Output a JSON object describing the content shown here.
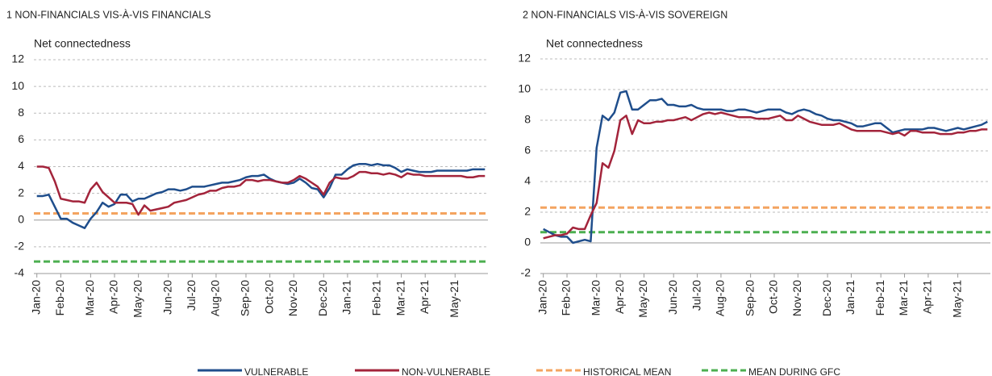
{
  "chart_data": [
    {
      "type": "line",
      "title": "1 NON-FINANCIALS VIS-À-VIS FINANCIALS",
      "ylabel": "Net connectedness",
      "categories": [
        "Jan-20",
        null,
        null,
        null,
        "Feb-20",
        null,
        null,
        null,
        null,
        "Mar-20",
        null,
        null,
        null,
        "Apr-20",
        null,
        null,
        null,
        "May-20",
        null,
        null,
        null,
        null,
        "Jun-20",
        null,
        null,
        null,
        "Jul-20",
        null,
        null,
        null,
        "Aug-20",
        null,
        null,
        null,
        null,
        "Sep-20",
        null,
        null,
        null,
        "Oct-20",
        null,
        null,
        null,
        "Nov-20",
        null,
        null,
        null,
        null,
        "Dec-20",
        null,
        null,
        null,
        "Jan-21",
        null,
        null,
        null,
        null,
        "Feb-21",
        null,
        null,
        null,
        "Mar-21",
        null,
        null,
        null,
        "Apr-21",
        null,
        null,
        null,
        null,
        "May-21",
        null,
        null,
        null,
        null,
        null
      ],
      "series": [
        {
          "color": "#1f4e8c",
          "values": [
            1.8,
            1.8,
            1.9,
            1.0,
            0.1,
            0.1,
            -0.2,
            -0.4,
            -0.6,
            0.1,
            0.6,
            1.3,
            1.0,
            1.2,
            1.9,
            1.9,
            1.4,
            1.6,
            1.6,
            1.8,
            2.0,
            2.1,
            2.3,
            2.3,
            2.2,
            2.3,
            2.5,
            2.5,
            2.5,
            2.6,
            2.7,
            2.8,
            2.8,
            2.9,
            3.0,
            3.2,
            3.3,
            3.3,
            3.4,
            3.1,
            2.9,
            2.8,
            2.7,
            2.8,
            3.1,
            2.8,
            2.4,
            2.3,
            1.7,
            2.4,
            3.4,
            3.4,
            3.8,
            4.1,
            4.2,
            4.2,
            4.1,
            4.2,
            4.1,
            4.1,
            3.9,
            3.6,
            3.8,
            3.7,
            3.6,
            3.6,
            3.6,
            3.7,
            3.7,
            3.7,
            3.7,
            3.7,
            3.7,
            3.8,
            3.8,
            3.8
          ]
        },
        {
          "color": "#a3243b",
          "values": [
            4.0,
            4.0,
            3.9,
            2.9,
            1.6,
            1.5,
            1.4,
            1.4,
            1.3,
            2.3,
            2.8,
            2.1,
            1.7,
            1.3,
            1.3,
            1.3,
            1.2,
            0.4,
            1.1,
            0.7,
            0.8,
            0.9,
            1.0,
            1.3,
            1.4,
            1.5,
            1.7,
            1.9,
            2.0,
            2.2,
            2.2,
            2.4,
            2.5,
            2.5,
            2.6,
            3.0,
            3.0,
            2.9,
            3.0,
            3.0,
            2.9,
            2.8,
            2.8,
            3.0,
            3.3,
            3.1,
            2.8,
            2.5,
            1.9,
            2.8,
            3.2,
            3.1,
            3.1,
            3.3,
            3.6,
            3.6,
            3.5,
            3.5,
            3.4,
            3.5,
            3.4,
            3.2,
            3.5,
            3.4,
            3.4,
            3.3,
            3.3,
            3.3,
            3.3,
            3.3,
            3.3,
            3.3,
            3.2,
            3.2,
            3.3,
            3.3
          ]
        }
      ],
      "reference_lines": [
        {
          "color": "#f4a460",
          "value": 0.5
        },
        {
          "color": "#4caf50",
          "value": -3.1
        }
      ],
      "ylim": [
        -4,
        12
      ],
      "yticks": [
        -4,
        -2,
        0,
        2,
        4,
        6,
        8,
        10,
        12
      ],
      "grid": true
    },
    {
      "type": "line",
      "title": "2 NON-FINANCIALS VIS-À-VIS SOVEREIGN",
      "ylabel": "Net connectedness",
      "categories": [
        "Jan-20",
        null,
        null,
        null,
        "Feb-20",
        null,
        null,
        null,
        null,
        "Mar-20",
        null,
        null,
        null,
        "Apr-20",
        null,
        null,
        null,
        "May-20",
        null,
        null,
        null,
        null,
        "Jun-20",
        null,
        null,
        null,
        "Jul-20",
        null,
        null,
        null,
        "Aug-20",
        null,
        null,
        null,
        null,
        "Sep-20",
        null,
        null,
        null,
        "Oct-20",
        null,
        null,
        null,
        "Nov-20",
        null,
        null,
        null,
        null,
        "Dec-20",
        null,
        null,
        null,
        "Jan-21",
        null,
        null,
        null,
        null,
        "Feb-21",
        null,
        null,
        null,
        "Mar-21",
        null,
        null,
        null,
        "Apr-21",
        null,
        null,
        null,
        null,
        "May-21",
        null,
        null,
        null,
        null,
        null
      ],
      "series": [
        {
          "color": "#1f4e8c",
          "values": [
            0.9,
            0.7,
            0.5,
            0.4,
            0.4,
            0.0,
            0.1,
            0.2,
            0.1,
            6.2,
            8.3,
            8.0,
            8.5,
            9.8,
            9.9,
            8.7,
            8.7,
            9.0,
            9.3,
            9.3,
            9.4,
            9.0,
            9.0,
            8.9,
            8.9,
            9.0,
            8.8,
            8.7,
            8.7,
            8.7,
            8.7,
            8.6,
            8.6,
            8.7,
            8.7,
            8.6,
            8.5,
            8.6,
            8.7,
            8.7,
            8.7,
            8.5,
            8.4,
            8.6,
            8.7,
            8.6,
            8.4,
            8.3,
            8.1,
            8.0,
            8.0,
            7.9,
            7.8,
            7.6,
            7.6,
            7.7,
            7.8,
            7.8,
            7.5,
            7.2,
            7.3,
            7.4,
            7.4,
            7.4,
            7.4,
            7.5,
            7.5,
            7.4,
            7.3,
            7.4,
            7.5,
            7.4,
            7.5,
            7.6,
            7.7,
            7.9
          ]
        },
        {
          "color": "#a3243b",
          "values": [
            0.3,
            0.4,
            0.5,
            0.5,
            0.6,
            1.0,
            0.9,
            0.9,
            1.8,
            2.6,
            5.2,
            4.9,
            6.0,
            8.0,
            8.3,
            7.1,
            8.0,
            7.8,
            7.8,
            7.9,
            7.9,
            8.0,
            8.0,
            8.1,
            8.2,
            8.0,
            8.2,
            8.4,
            8.5,
            8.4,
            8.5,
            8.4,
            8.3,
            8.2,
            8.2,
            8.2,
            8.1,
            8.1,
            8.1,
            8.2,
            8.3,
            8.0,
            8.0,
            8.3,
            8.1,
            7.9,
            7.8,
            7.7,
            7.7,
            7.7,
            7.8,
            7.6,
            7.4,
            7.3,
            7.3,
            7.3,
            7.3,
            7.3,
            7.2,
            7.1,
            7.2,
            7.0,
            7.3,
            7.3,
            7.2,
            7.2,
            7.2,
            7.1,
            7.1,
            7.1,
            7.2,
            7.2,
            7.3,
            7.3,
            7.4,
            7.4
          ]
        }
      ],
      "reference_lines": [
        {
          "color": "#f4a460",
          "value": 2.3
        },
        {
          "color": "#4caf50",
          "value": 0.7
        }
      ],
      "ylim": [
        -2,
        12
      ],
      "yticks": [
        -2,
        0,
        2,
        4,
        6,
        8,
        10,
        12
      ],
      "grid": true
    }
  ],
  "legend": [
    {
      "name": "VULNERABLE",
      "color": "#1f4e8c",
      "dashed": false
    },
    {
      "name": "NON-VULNERABLE",
      "color": "#a3243b",
      "dashed": false
    },
    {
      "name": "HISTORICAL MEAN",
      "color": "#f4a460",
      "dashed": true
    },
    {
      "name": "MEAN DURING GFC",
      "color": "#4caf50",
      "dashed": true
    }
  ]
}
